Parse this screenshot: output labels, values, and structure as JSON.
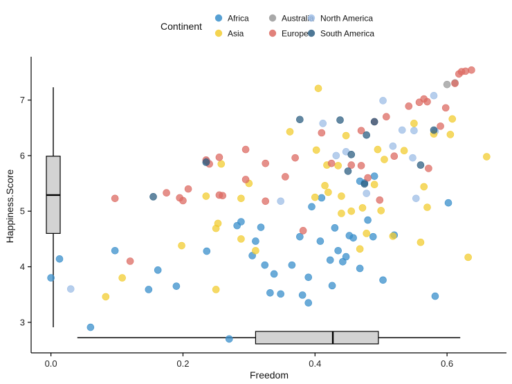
{
  "chart_data": {
    "type": "scatter",
    "xlabel": "Freedom",
    "ylabel": "Happiness.Score",
    "xlim": [
      -0.03,
      0.69
    ],
    "ylim": [
      2.45,
      7.78
    ],
    "x_ticks": [
      0.0,
      0.2,
      0.4,
      0.6
    ],
    "x_tick_labels": [
      "0.0",
      "0.2",
      "0.4",
      "0.6"
    ],
    "y_ticks": [
      3,
      4,
      5,
      6,
      7
    ],
    "y_tick_labels": [
      "3",
      "4",
      "5",
      "6",
      "7"
    ],
    "grid": false,
    "legend": {
      "title": "Continent",
      "placement": "top",
      "entries": [
        "Africa",
        "Australia",
        "North America",
        "Asia",
        "Europe",
        "South America"
      ]
    },
    "colors": {
      "Africa": "#3a8fcb",
      "Australia": "#999999",
      "North America": "#9dbde6",
      "Asia": "#f2cc31",
      "Europe": "#dc6b63",
      "South America": "#2e5f82"
    },
    "series": [
      {
        "name": "Africa",
        "points": [
          [
            0.0,
            3.8
          ],
          [
            0.013,
            4.14
          ],
          [
            0.06,
            2.91
          ],
          [
            0.097,
            4.29
          ],
          [
            0.148,
            3.59
          ],
          [
            0.162,
            3.94
          ],
          [
            0.19,
            3.65
          ],
          [
            0.236,
            4.28
          ],
          [
            0.236,
            5.9
          ],
          [
            0.27,
            2.7
          ],
          [
            0.282,
            4.74
          ],
          [
            0.288,
            4.81
          ],
          [
            0.305,
            4.2
          ],
          [
            0.31,
            4.46
          ],
          [
            0.318,
            4.71
          ],
          [
            0.324,
            4.03
          ],
          [
            0.332,
            3.53
          ],
          [
            0.338,
            3.87
          ],
          [
            0.348,
            3.51
          ],
          [
            0.365,
            4.03
          ],
          [
            0.377,
            4.54
          ],
          [
            0.381,
            3.49
          ],
          [
            0.39,
            3.81
          ],
          [
            0.39,
            3.35
          ],
          [
            0.395,
            5.08
          ],
          [
            0.408,
            4.46
          ],
          [
            0.41,
            5.24
          ],
          [
            0.423,
            4.12
          ],
          [
            0.426,
            3.66
          ],
          [
            0.43,
            4.7
          ],
          [
            0.435,
            4.29
          ],
          [
            0.442,
            4.09
          ],
          [
            0.447,
            4.18
          ],
          [
            0.452,
            4.56
          ],
          [
            0.458,
            4.52
          ],
          [
            0.468,
            5.54
          ],
          [
            0.468,
            3.97
          ],
          [
            0.475,
            5.51
          ],
          [
            0.48,
            4.84
          ],
          [
            0.488,
            4.54
          ],
          [
            0.49,
            5.63
          ],
          [
            0.503,
            3.76
          ],
          [
            0.52,
            4.57
          ],
          [
            0.582,
            3.47
          ],
          [
            0.602,
            5.15
          ]
        ]
      },
      {
        "name": "Australia",
        "points": [
          [
            0.6,
            7.28
          ],
          [
            0.612,
            7.31
          ]
        ]
      },
      {
        "name": "North America",
        "points": [
          [
            0.03,
            3.6
          ],
          [
            0.348,
            5.18
          ],
          [
            0.412,
            6.58
          ],
          [
            0.432,
            6.0
          ],
          [
            0.447,
            6.07
          ],
          [
            0.478,
            5.32
          ],
          [
            0.503,
            6.99
          ],
          [
            0.518,
            6.17
          ],
          [
            0.532,
            6.46
          ],
          [
            0.548,
            5.96
          ],
          [
            0.55,
            6.45
          ],
          [
            0.553,
            5.23
          ],
          [
            0.58,
            7.08
          ],
          [
            0.582,
            6.44
          ]
        ]
      },
      {
        "name": "Asia",
        "points": [
          [
            0.083,
            3.46
          ],
          [
            0.108,
            3.8
          ],
          [
            0.198,
            4.38
          ],
          [
            0.235,
            5.27
          ],
          [
            0.25,
            4.69
          ],
          [
            0.25,
            3.59
          ],
          [
            0.253,
            4.78
          ],
          [
            0.258,
            5.85
          ],
          [
            0.288,
            5.23
          ],
          [
            0.288,
            4.5
          ],
          [
            0.3,
            5.5
          ],
          [
            0.31,
            4.29
          ],
          [
            0.362,
            6.43
          ],
          [
            0.4,
            5.25
          ],
          [
            0.402,
            6.1
          ],
          [
            0.405,
            7.21
          ],
          [
            0.415,
            5.46
          ],
          [
            0.418,
            5.83
          ],
          [
            0.42,
            5.34
          ],
          [
            0.435,
            5.82
          ],
          [
            0.44,
            5.27
          ],
          [
            0.44,
            4.96
          ],
          [
            0.447,
            6.36
          ],
          [
            0.455,
            5.0
          ],
          [
            0.468,
            4.32
          ],
          [
            0.472,
            5.06
          ],
          [
            0.478,
            4.6
          ],
          [
            0.49,
            5.48
          ],
          [
            0.495,
            6.11
          ],
          [
            0.5,
            5.01
          ],
          [
            0.505,
            5.93
          ],
          [
            0.518,
            4.55
          ],
          [
            0.535,
            6.09
          ],
          [
            0.55,
            6.58
          ],
          [
            0.56,
            4.44
          ],
          [
            0.565,
            5.44
          ],
          [
            0.57,
            5.07
          ],
          [
            0.58,
            6.39
          ],
          [
            0.605,
            6.38
          ],
          [
            0.608,
            6.66
          ],
          [
            0.632,
            4.17
          ],
          [
            0.66,
            5.98
          ]
        ]
      },
      {
        "name": "Europe",
        "points": [
          [
            0.097,
            5.23
          ],
          [
            0.12,
            4.1
          ],
          [
            0.175,
            5.33
          ],
          [
            0.195,
            5.24
          ],
          [
            0.2,
            5.19
          ],
          [
            0.208,
            5.4
          ],
          [
            0.235,
            5.92
          ],
          [
            0.24,
            5.85
          ],
          [
            0.255,
            5.97
          ],
          [
            0.255,
            5.29
          ],
          [
            0.26,
            5.28
          ],
          [
            0.295,
            6.11
          ],
          [
            0.295,
            5.57
          ],
          [
            0.325,
            5.86
          ],
          [
            0.325,
            5.18
          ],
          [
            0.355,
            5.62
          ],
          [
            0.37,
            5.96
          ],
          [
            0.382,
            4.65
          ],
          [
            0.41,
            6.41
          ],
          [
            0.425,
            5.86
          ],
          [
            0.455,
            5.83
          ],
          [
            0.47,
            6.45
          ],
          [
            0.47,
            5.82
          ],
          [
            0.48,
            5.6
          ],
          [
            0.49,
            6.61
          ],
          [
            0.498,
            5.2
          ],
          [
            0.508,
            6.7
          ],
          [
            0.52,
            5.99
          ],
          [
            0.542,
            6.89
          ],
          [
            0.558,
            6.96
          ],
          [
            0.565,
            7.02
          ],
          [
            0.57,
            6.97
          ],
          [
            0.572,
            5.77
          ],
          [
            0.59,
            6.53
          ],
          [
            0.598,
            6.86
          ],
          [
            0.612,
            7.3
          ],
          [
            0.618,
            7.47
          ],
          [
            0.622,
            7.51
          ],
          [
            0.628,
            7.52
          ],
          [
            0.637,
            7.54
          ]
        ]
      },
      {
        "name": "South America",
        "points": [
          [
            0.155,
            5.26
          ],
          [
            0.235,
            5.88
          ],
          [
            0.377,
            6.65
          ],
          [
            0.438,
            6.64
          ],
          [
            0.45,
            5.72
          ],
          [
            0.455,
            6.02
          ],
          [
            0.475,
            5.49
          ],
          [
            0.478,
            6.37
          ],
          [
            0.49,
            6.61
          ],
          [
            0.56,
            5.83
          ],
          [
            0.58,
            6.46
          ]
        ]
      }
    ],
    "marginal_boxplots": {
      "y": {
        "min": 2.91,
        "q1": 4.6,
        "median": 5.29,
        "q3": 5.99,
        "max": 7.23,
        "outliers": []
      },
      "x": {
        "min": 0.04,
        "q1": 0.31,
        "median": 0.427,
        "q3": 0.496,
        "max": 0.62,
        "outliers": []
      }
    }
  }
}
